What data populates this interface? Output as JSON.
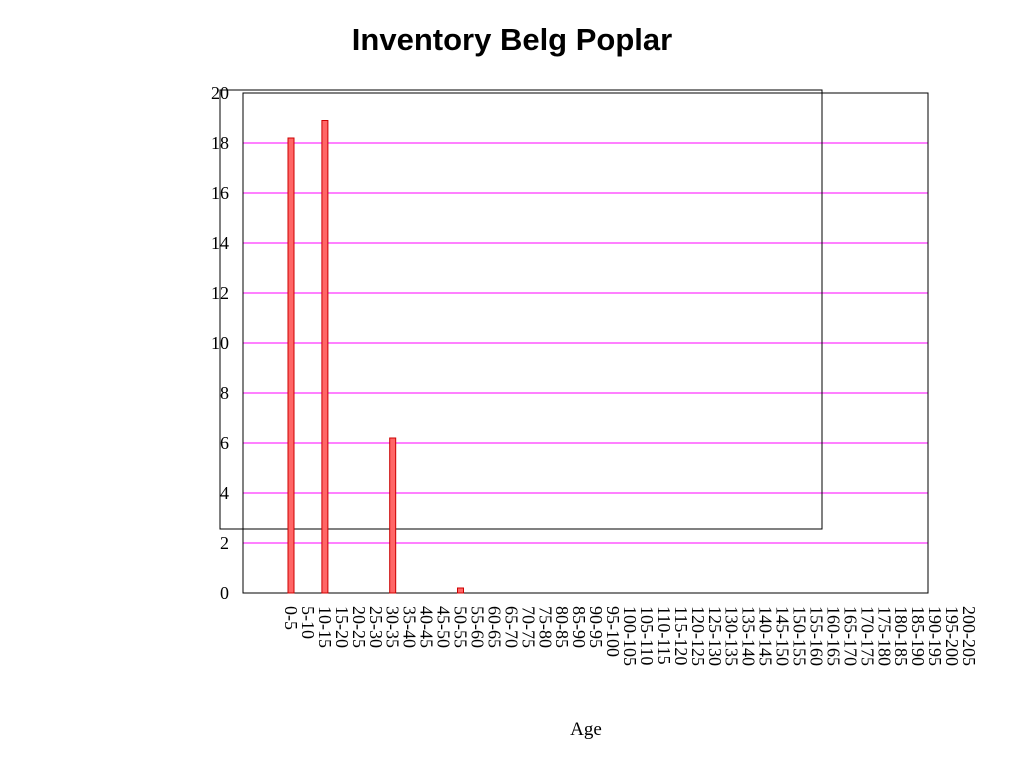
{
  "chart_data": {
    "type": "bar",
    "title": "Inventory Belg Poplar",
    "xlabel": "Age",
    "ylabel": "",
    "ylim": [
      0,
      20
    ],
    "yticks": [
      0,
      2,
      4,
      6,
      8,
      10,
      12,
      14,
      16,
      18,
      20
    ],
    "grid": true,
    "colors": {
      "bar_fill": "#ff6666",
      "bar_stroke": "#cc0000",
      "grid": "#ff00ff",
      "zero_line": "#ff0000"
    },
    "categories": [
      "0-5",
      "5-10",
      "10-15",
      "15-20",
      "20-25",
      "25-30",
      "30-35",
      "35-40",
      "40-45",
      "45-50",
      "50-55",
      "55-60",
      "60-65",
      "65-70",
      "70-75",
      "75-80",
      "80-85",
      "85-90",
      "90-95",
      "95-100",
      "100-105",
      "105-110",
      "110-115",
      "115-120",
      "120-125",
      "125-130",
      "130-135",
      "135-140",
      "140-145",
      "145-150",
      "150-155",
      "155-160",
      "160-165",
      "165-170",
      "170-175",
      "175-180",
      "180-185",
      "185-190",
      "190-195",
      "195-200",
      "200-205"
    ],
    "values": [
      18.2,
      0,
      18.9,
      0,
      0,
      0,
      6.2,
      0,
      0,
      0,
      0.2,
      0,
      0,
      0,
      0,
      0,
      0,
      0,
      0,
      0,
      0,
      0,
      0,
      0,
      0,
      0,
      0,
      0,
      0,
      0,
      0,
      0,
      0,
      0,
      0,
      0,
      0,
      0,
      0,
      0,
      0
    ]
  }
}
